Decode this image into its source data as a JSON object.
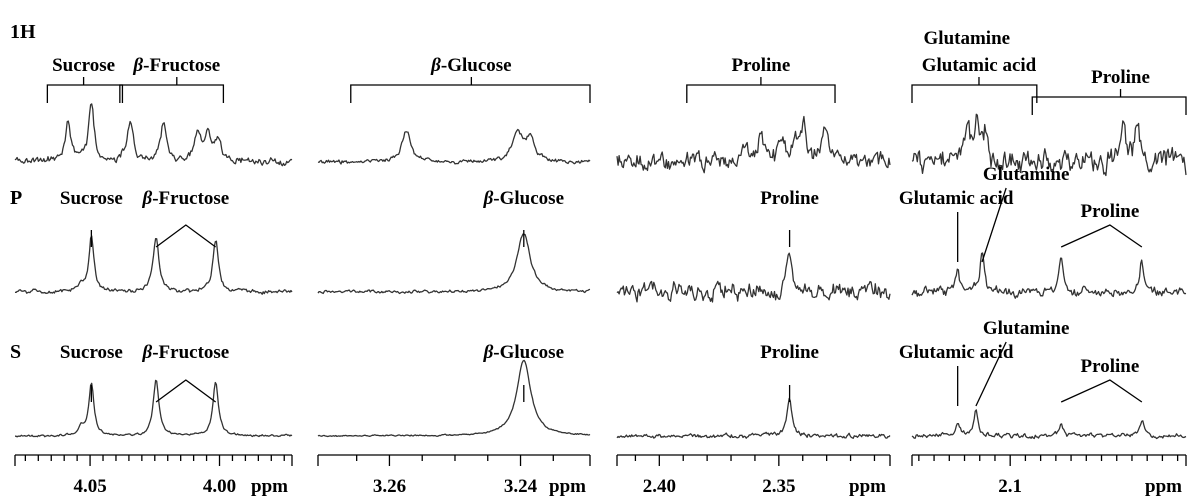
{
  "rows": [
    "1H",
    "P",
    "S"
  ],
  "unit": "ppm",
  "colors": {
    "spectrum": "#333333",
    "annotation": "#000000",
    "background": "#ffffff"
  },
  "chart_data": [
    {
      "type": "line",
      "xlim": [
        4.079,
        3.972
      ],
      "x_reversed": true,
      "tick_labels": [
        {
          "x": 4.05,
          "label": "4.05"
        },
        {
          "x": 4.0,
          "label": "4.00"
        }
      ],
      "minor_ticks": [
        4.075,
        4.07,
        4.065,
        4.06,
        4.055,
        4.045,
        4.04,
        4.035,
        4.03,
        4.025,
        4.02,
        4.015,
        4.01,
        4.005,
        3.995,
        3.99,
        3.985,
        3.98,
        3.975
      ],
      "xlabel": "ppm",
      "series": [
        {
          "row": "1H",
          "peaks": [
            {
              "x": 4.0585,
              "h": 0.55,
              "w": 0.0012
            },
            {
              "x": 4.0495,
              "h": 0.82,
              "w": 0.0012
            },
            {
              "x": 4.0345,
              "h": 0.5,
              "w": 0.0015
            },
            {
              "x": 4.0215,
              "h": 0.52,
              "w": 0.0013
            },
            {
              "x": 4.0085,
              "h": 0.38,
              "w": 0.0015
            },
            {
              "x": 4.0045,
              "h": 0.32,
              "w": 0.0015
            },
            {
              "x": 4.0005,
              "h": 0.3,
              "w": 0.0015
            }
          ],
          "annotations": [
            {
              "text": "Sucrose",
              "type": "bracket",
              "x1": 4.0665,
              "x2": 4.0375,
              "text_x": 4.0525
            },
            {
              "text": "β-Fructose",
              "type": "bracket",
              "x1": 4.0385,
              "x2": 3.9985,
              "text_x": 4.0165,
              "greek": true
            }
          ]
        },
        {
          "row": "P",
          "peaks": [
            {
              "x": 4.0495,
              "h": 0.75,
              "w": 0.0012
            },
            {
              "x": 4.0535,
              "h": 0.08,
              "w": 0.0012
            },
            {
              "x": 4.0245,
              "h": 0.75,
              "w": 0.0013
            },
            {
              "x": 4.0015,
              "h": 0.72,
              "w": 0.0013
            }
          ],
          "annotations": [
            {
              "text": "Sucrose",
              "type": "line",
              "x": 4.0495,
              "text_x": 4.0495
            },
            {
              "text": "β-Fructose",
              "type": "chevron",
              "x1": 4.0245,
              "x2": 4.0015,
              "text_x": 4.013,
              "greek": true
            }
          ]
        },
        {
          "row": "S",
          "peaks": [
            {
              "x": 4.0495,
              "h": 0.72,
              "w": 0.0012
            },
            {
              "x": 4.0535,
              "h": 0.12,
              "w": 0.0012
            },
            {
              "x": 4.0245,
              "h": 0.78,
              "w": 0.0013
            },
            {
              "x": 4.0015,
              "h": 0.75,
              "w": 0.0013
            }
          ],
          "annotations": [
            {
              "text": "Sucrose",
              "type": "line",
              "x": 4.0495,
              "text_x": 4.0495
            },
            {
              "text": "β-Fructose",
              "type": "chevron",
              "x1": 4.0245,
              "x2": 4.0015,
              "text_x": 4.013,
              "greek": true
            }
          ]
        }
      ]
    },
    {
      "type": "line",
      "xlim": [
        3.2709,
        3.2294
      ],
      "x_reversed": true,
      "tick_labels": [
        {
          "x": 3.26,
          "label": "3.26"
        },
        {
          "x": 3.24,
          "label": "3.24"
        }
      ],
      "minor_ticks": [
        3.265,
        3.255,
        3.25,
        3.245,
        3.235
      ],
      "xlabel": "ppm",
      "series": [
        {
          "row": "1H",
          "peaks": [
            {
              "x": 3.2574,
              "h": 0.42,
              "w": 0.0008
            },
            {
              "x": 3.2405,
              "h": 0.4,
              "w": 0.0009
            },
            {
              "x": 3.2385,
              "h": 0.3,
              "w": 0.0008
            },
            {
              "x": 3.2225,
              "h": 0.38,
              "w": 0.0008
            }
          ],
          "annotations": [
            {
              "text": "β-Glucose",
              "type": "bracket",
              "x1": 3.2659,
              "x2": 3.2294,
              "text_x": 3.2475,
              "greek": true
            }
          ]
        },
        {
          "row": "P",
          "peaks": [
            {
              "x": 3.2395,
              "h": 0.8,
              "w": 0.0012
            }
          ],
          "annotations": [
            {
              "text": "β-Glucose",
              "type": "line",
              "x": 3.2395,
              "text_x": 3.2395,
              "greek": true
            }
          ]
        },
        {
          "row": "S",
          "peaks": [
            {
              "x": 3.2395,
              "h": 1.05,
              "w": 0.0013
            }
          ],
          "annotations": [
            {
              "text": "β-Glucose",
              "type": "line",
              "x": 3.2395,
              "text_x": 3.2395,
              "greek": true
            }
          ]
        }
      ]
    },
    {
      "type": "line",
      "xlim": [
        2.4177,
        2.3035
      ],
      "x_reversed": true,
      "tick_labels": [
        {
          "x": 2.4,
          "label": "2.40"
        },
        {
          "x": 2.35,
          "label": "2.35"
        }
      ],
      "minor_ticks": [
        2.41,
        2.39,
        2.38,
        2.37,
        2.36,
        2.34,
        2.33,
        2.32,
        2.31
      ],
      "xlabel": "ppm",
      "series": [
        {
          "row": "1H",
          "peaks": [
            {
              "x": 2.3635,
              "h": 0.3,
              "w": 0.0012
            },
            {
              "x": 2.3575,
              "h": 0.4,
              "w": 0.0012
            },
            {
              "x": 2.3485,
              "h": 0.35,
              "w": 0.0012
            },
            {
              "x": 2.3425,
              "h": 0.25,
              "w": 0.0012
            },
            {
              "x": 2.3395,
              "h": 0.5,
              "w": 0.0012
            },
            {
              "x": 2.3305,
              "h": 0.48,
              "w": 0.0012
            }
          ],
          "annotations": [
            {
              "text": "Proline",
              "type": "bracket",
              "x1": 2.3885,
              "x2": 2.3265,
              "text_x": 2.3575
            }
          ]
        },
        {
          "row": "P",
          "peaks": [
            {
              "x": 2.3455,
              "h": 0.55,
              "w": 0.0012
            }
          ],
          "annotations": [
            {
              "text": "Proline",
              "type": "line",
              "x": 2.3455,
              "text_x": 2.3455
            }
          ]
        },
        {
          "row": "S",
          "peaks": [
            {
              "x": 2.3455,
              "h": 0.55,
              "w": 0.0012
            }
          ],
          "annotations": [
            {
              "text": "Proline",
              "type": "line",
              "x": 2.3455,
              "text_x": 2.3455
            }
          ]
        }
      ]
    },
    {
      "type": "line",
      "xlim": [
        2.1645,
        1.9845
      ],
      "x_reversed": true,
      "tick_labels": [
        {
          "x": 2.1,
          "label": "2.1"
        }
      ],
      "minor_ticks": [
        2.16,
        2.15,
        2.14,
        2.13,
        2.12,
        2.11,
        2.09,
        2.08,
        2.07,
        2.06,
        2.05,
        2.04,
        2.03,
        2.02,
        2.01,
        2.0,
        1.99
      ],
      "xlabel": "ppm",
      "series": [
        {
          "row": "1H",
          "peaks": [
            {
              "x": 2.1285,
              "h": 0.45,
              "w": 0.002
            },
            {
              "x": 2.1215,
              "h": 0.5,
              "w": 0.002
            },
            {
              "x": 2.1155,
              "h": 0.4,
              "w": 0.002
            },
            {
              "x": 2.0255,
              "h": 0.55,
              "w": 0.0018
            },
            {
              "x": 2.0165,
              "h": 0.4,
              "w": 0.0018
            }
          ],
          "annotations": [
            {
              "text": "Glutamine",
              "type": "text",
              "text_x": 2.1285
            },
            {
              "text": "Glutamic acid",
              "type": "bracket",
              "x1": 2.1645,
              "x2": 2.0825,
              "text_x": 2.1205
            },
            {
              "text": "Proline",
              "type": "bracket",
              "x1": 2.0855,
              "x2": 1.9845,
              "text_x": 2.0275
            }
          ]
        },
        {
          "row": "P",
          "peaks": [
            {
              "x": 2.1345,
              "h": 0.28,
              "w": 0.0016
            },
            {
              "x": 2.1185,
              "h": 0.55,
              "w": 0.0016
            },
            {
              "x": 2.0665,
              "h": 0.42,
              "w": 0.0016
            },
            {
              "x": 2.0135,
              "h": 0.42,
              "w": 0.0016
            }
          ],
          "annotations": [
            {
              "text": "Glutamic acid",
              "type": "lead",
              "x": 2.1345,
              "text_x": 2.1355
            },
            {
              "text": "Glutamine",
              "type": "lead",
              "x": 2.1185,
              "text_x": 2.0895
            },
            {
              "text": "Proline",
              "type": "chevron",
              "x1": 2.0665,
              "x2": 2.0135,
              "text_x": 2.0345
            }
          ]
        },
        {
          "row": "S",
          "peaks": [
            {
              "x": 2.1345,
              "h": 0.18,
              "w": 0.0016
            },
            {
              "x": 2.1225,
              "h": 0.38,
              "w": 0.0016
            },
            {
              "x": 2.0665,
              "h": 0.2,
              "w": 0.0016
            },
            {
              "x": 2.0135,
              "h": 0.22,
              "w": 0.0016
            }
          ],
          "annotations": [
            {
              "text": "Glutamic acid",
              "type": "lead",
              "x": 2.1345,
              "text_x": 2.1355
            },
            {
              "text": "Glutamine",
              "type": "lead",
              "x": 2.1225,
              "text_x": 2.0895
            },
            {
              "text": "Proline",
              "type": "chevron",
              "x1": 2.0665,
              "x2": 2.0135,
              "text_x": 2.0345
            }
          ]
        }
      ]
    }
  ]
}
